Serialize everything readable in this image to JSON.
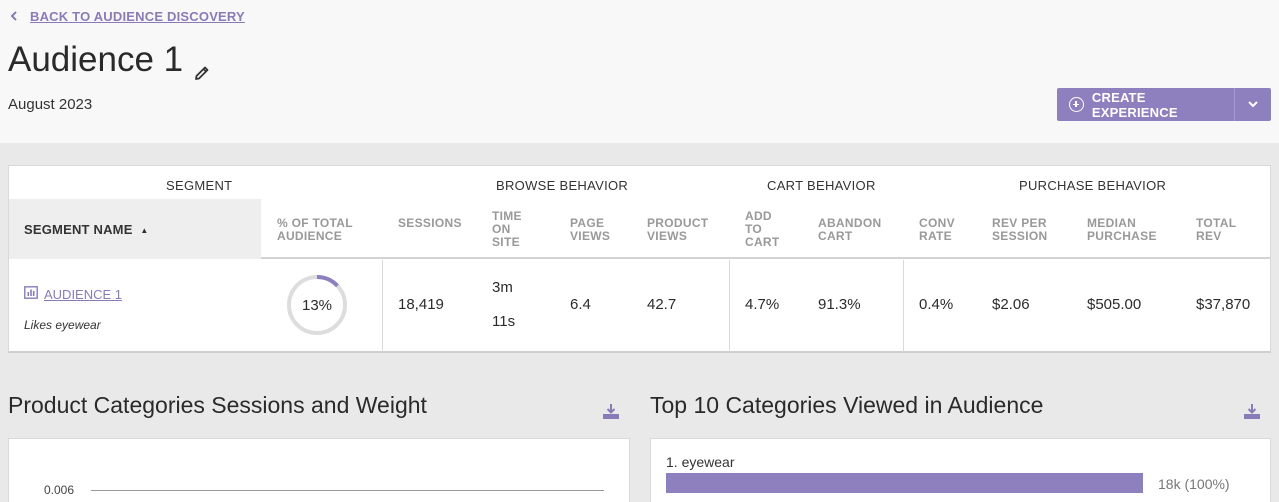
{
  "header": {
    "back_label": "BACK TO AUDIENCE DISCOVERY",
    "title": "Audience 1",
    "subtitle": "August 2023",
    "create_label": "CREATE EXPERIENCE"
  },
  "table": {
    "groups": {
      "segment": "SEGMENT",
      "browse": "BROWSE BEHAVIOR",
      "cart": "CART BEHAVIOR",
      "purchase": "PURCHASE BEHAVIOR"
    },
    "columns": {
      "segment_name": "SEGMENT NAME",
      "sort_indicator": "▲",
      "pct_total": [
        "% OF TOTAL",
        "AUDIENCE"
      ],
      "sessions": [
        "SESSIONS"
      ],
      "time_on_site": [
        "TIME",
        "ON",
        "SITE"
      ],
      "page_views": [
        "PAGE",
        "VIEWS"
      ],
      "product_views": [
        "PRODUCT",
        "VIEWS"
      ],
      "add_to_cart": [
        "ADD",
        "TO",
        "CART"
      ],
      "abandon_cart": [
        "ABANDON",
        "CART"
      ],
      "conv_rate": [
        "CONV",
        "RATE"
      ],
      "rev_per_session": [
        "REV PER",
        "SESSION"
      ],
      "median_purchase": [
        "MEDIAN",
        "PURCHASE"
      ],
      "total_rev": [
        "TOTAL",
        "REV"
      ]
    },
    "row": {
      "name": "AUDIENCE 1",
      "description": "Likes eyewear",
      "pct_total": "13%",
      "pct_fraction": 0.13,
      "sessions": "18,419",
      "time_min": "3m",
      "time_sec": "11s",
      "page_views": "6.4",
      "product_views": "42.7",
      "add_to_cart": "4.7%",
      "abandon_cart": "91.3%",
      "conv_rate": "0.4%",
      "rev_per_session": "$2.06",
      "median_purchase": "$505.00",
      "total_rev": "$37,870"
    }
  },
  "left_section": {
    "title": "Product Categories Sessions and Weight",
    "y_tick": "0.006"
  },
  "right_section": {
    "title": "Top 10 Categories Viewed in Audience",
    "items": [
      {
        "label": "1. eyewear",
        "value_label": "18k (100%)",
        "fraction": 1.0
      }
    ]
  },
  "colors": {
    "accent": "#8e7fbf",
    "link": "#8a7bb8",
    "ring_track": "#dddddd"
  }
}
